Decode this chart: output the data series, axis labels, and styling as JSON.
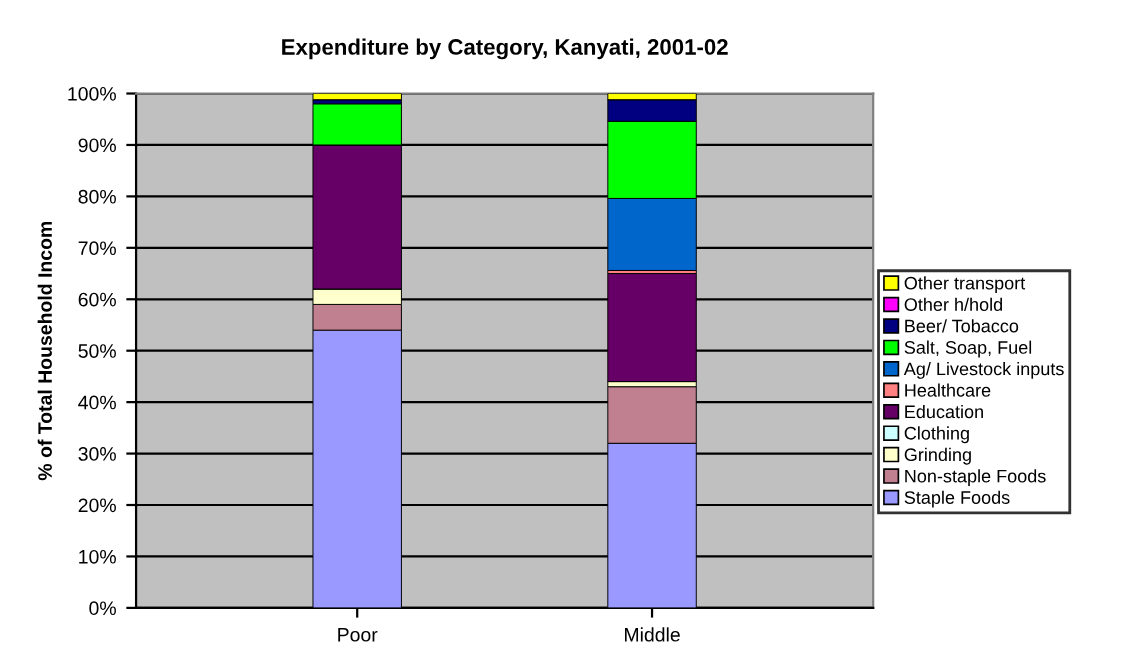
{
  "chart_data": {
    "type": "bar",
    "title": "Expenditure by Category, Kanyati, 2001-02",
    "ylabel": "% of Total Household Incom",
    "categories": [
      "Poor",
      "Middle"
    ],
    "stacked": true,
    "grid": "y",
    "legend": "right",
    "ylim": [
      0,
      100
    ],
    "yticks": [
      {
        "value": 0,
        "label": "0%"
      },
      {
        "value": 10,
        "label": "10%"
      },
      {
        "value": 20,
        "label": "20%"
      },
      {
        "value": 30,
        "label": "30%"
      },
      {
        "value": 40,
        "label": "40%"
      },
      {
        "value": 50,
        "label": "50%"
      },
      {
        "value": 60,
        "label": "60%"
      },
      {
        "value": 70,
        "label": "70%"
      },
      {
        "value": 80,
        "label": "80%"
      },
      {
        "value": 90,
        "label": "90%"
      },
      {
        "value": 100,
        "label": "100%"
      }
    ],
    "series": [
      {
        "name": "Staple Foods",
        "color": "#9999ff",
        "values": [
          54,
          32
        ]
      },
      {
        "name": "Non-staple Foods",
        "color": "#c08090",
        "values": [
          5,
          11
        ]
      },
      {
        "name": "Grinding",
        "color": "#ffffcc",
        "values": [
          3,
          1
        ]
      },
      {
        "name": "Clothing",
        "color": "#ccffff",
        "values": [
          0,
          0
        ]
      },
      {
        "name": "Education",
        "color": "#660066",
        "values": [
          28,
          21
        ]
      },
      {
        "name": "Healthcare",
        "color": "#ff8080",
        "values": [
          0,
          0.6
        ]
      },
      {
        "name": "Ag/ Livestock inputs",
        "color": "#0066cc",
        "values": [
          0,
          14
        ]
      },
      {
        "name": "Salt, Soap, Fuel",
        "color": "#00ff00",
        "values": [
          8,
          15
        ]
      },
      {
        "name": "Beer/ Tobacco",
        "color": "#000080",
        "values": [
          0.8,
          4.2
        ]
      },
      {
        "name": "Other h/hold",
        "color": "#ff00ff",
        "values": [
          0,
          0
        ]
      },
      {
        "name": "Other transport",
        "color": "#ffff00",
        "values": [
          1.2,
          1.2
        ]
      }
    ]
  }
}
